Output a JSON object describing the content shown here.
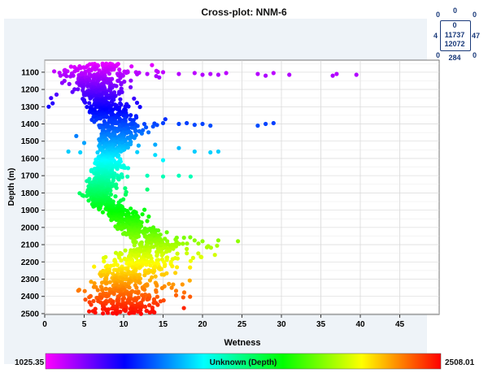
{
  "chart_data": {
    "type": "scatter",
    "title": "Cross-plot: NNM-6",
    "xlabel": "Wetness",
    "ylabel": "Depth (m)",
    "xlim": [
      0,
      50
    ],
    "ylim": [
      1030,
      2505
    ],
    "y_inverted": true,
    "xticks": [
      0,
      5,
      10,
      15,
      20,
      25,
      30,
      35,
      40,
      45
    ],
    "yticks": [
      1100,
      1200,
      1300,
      1400,
      1500,
      1600,
      1700,
      1800,
      1900,
      2000,
      2100,
      2200,
      2300,
      2400,
      2500
    ],
    "grid": true,
    "color_scale": {
      "label": "Unknown (Depth)",
      "min_label": "1025.35",
      "max_label": "2508.01",
      "min": 1025.35,
      "max": 2508.01,
      "colors": [
        "#ff00ff",
        "#0000ff",
        "#00ffff",
        "#00ff00",
        "#ffff00",
        "#ff0000"
      ]
    },
    "summary_grid": {
      "top_outer": "0",
      "top_inner": "0",
      "center_top": "11737",
      "center_bottom": "12072",
      "left": "4",
      "right": "47",
      "top_left": "0",
      "top_right": "0",
      "bottom_left": "0",
      "bottom_right": "0",
      "bottom": "284"
    },
    "trend": [
      {
        "depth": 1050,
        "center": 7.0,
        "spread": 2.2
      },
      {
        "depth": 1100,
        "center": 6.5,
        "spread": 2.6
      },
      {
        "depth": 1150,
        "center": 6.2,
        "spread": 2.0
      },
      {
        "depth": 1200,
        "center": 6.5,
        "spread": 1.6
      },
      {
        "depth": 1250,
        "center": 7.0,
        "spread": 1.3
      },
      {
        "depth": 1300,
        "center": 7.4,
        "spread": 1.2
      },
      {
        "depth": 1350,
        "center": 8.0,
        "spread": 1.5
      },
      {
        "depth": 1400,
        "center": 9.0,
        "spread": 2.0
      },
      {
        "depth": 1450,
        "center": 9.2,
        "spread": 1.6
      },
      {
        "depth": 1500,
        "center": 9.0,
        "spread": 1.3
      },
      {
        "depth": 1550,
        "center": 8.4,
        "spread": 1.1
      },
      {
        "depth": 1600,
        "center": 8.0,
        "spread": 1.0
      },
      {
        "depth": 1650,
        "center": 7.6,
        "spread": 1.0
      },
      {
        "depth": 1700,
        "center": 7.4,
        "spread": 1.0
      },
      {
        "depth": 1750,
        "center": 7.2,
        "spread": 1.1
      },
      {
        "depth": 1800,
        "center": 6.5,
        "spread": 1.1
      },
      {
        "depth": 1850,
        "center": 7.5,
        "spread": 1.2
      },
      {
        "depth": 1900,
        "center": 8.8,
        "spread": 1.2
      },
      {
        "depth": 1950,
        "center": 10.2,
        "spread": 1.3
      },
      {
        "depth": 2000,
        "center": 11.2,
        "spread": 1.4
      },
      {
        "depth": 2050,
        "center": 12.5,
        "spread": 1.6
      },
      {
        "depth": 2100,
        "center": 14.5,
        "spread": 2.6
      },
      {
        "depth": 2150,
        "center": 12.5,
        "spread": 2.4
      },
      {
        "depth": 2200,
        "center": 11.5,
        "spread": 2.6
      },
      {
        "depth": 2250,
        "center": 10.5,
        "spread": 2.4
      },
      {
        "depth": 2300,
        "center": 10.0,
        "spread": 2.2
      },
      {
        "depth": 2350,
        "center": 9.5,
        "spread": 2.4
      },
      {
        "depth": 2400,
        "center": 9.5,
        "spread": 2.8
      },
      {
        "depth": 2450,
        "center": 10.0,
        "spread": 2.8
      },
      {
        "depth": 2500,
        "center": 10.5,
        "spread": 2.6
      }
    ],
    "outliers": [
      {
        "x": 13,
        "y": 1110
      },
      {
        "x": 15,
        "y": 1100
      },
      {
        "x": 17,
        "y": 1110
      },
      {
        "x": 19,
        "y": 1105
      },
      {
        "x": 20,
        "y": 1115
      },
      {
        "x": 21,
        "y": 1110
      },
      {
        "x": 22,
        "y": 1115
      },
      {
        "x": 23,
        "y": 1105
      },
      {
        "x": 27,
        "y": 1110
      },
      {
        "x": 28,
        "y": 1120
      },
      {
        "x": 29,
        "y": 1105
      },
      {
        "x": 31,
        "y": 1115
      },
      {
        "x": 36.5,
        "y": 1120
      },
      {
        "x": 37,
        "y": 1110
      },
      {
        "x": 39.5,
        "y": 1115
      },
      {
        "x": 1,
        "y": 1280
      },
      {
        "x": 0.5,
        "y": 1300
      },
      {
        "x": 0.8,
        "y": 1250
      },
      {
        "x": 1.5,
        "y": 1230
      },
      {
        "x": 2.5,
        "y": 1150
      },
      {
        "x": 2,
        "y": 1120
      },
      {
        "x": 1.2,
        "y": 1095
      },
      {
        "x": 15,
        "y": 1395
      },
      {
        "x": 17,
        "y": 1400
      },
      {
        "x": 18,
        "y": 1395
      },
      {
        "x": 19,
        "y": 1405
      },
      {
        "x": 20,
        "y": 1400
      },
      {
        "x": 21,
        "y": 1410
      },
      {
        "x": 27,
        "y": 1410
      },
      {
        "x": 28,
        "y": 1400
      },
      {
        "x": 29,
        "y": 1395
      },
      {
        "x": 4,
        "y": 1470
      },
      {
        "x": 5,
        "y": 1510
      },
      {
        "x": 14,
        "y": 1520
      },
      {
        "x": 17,
        "y": 1540
      },
      {
        "x": 3,
        "y": 1560
      },
      {
        "x": 4.5,
        "y": 1565
      },
      {
        "x": 19,
        "y": 1560
      },
      {
        "x": 21,
        "y": 1565
      },
      {
        "x": 22,
        "y": 1560
      },
      {
        "x": 14,
        "y": 1580
      },
      {
        "x": 15,
        "y": 1610
      },
      {
        "x": 13,
        "y": 1700
      },
      {
        "x": 15,
        "y": 1705
      },
      {
        "x": 17,
        "y": 1700
      },
      {
        "x": 18.5,
        "y": 1705
      },
      {
        "x": 13,
        "y": 1780
      },
      {
        "x": 19,
        "y": 2075
      },
      {
        "x": 20,
        "y": 2080
      },
      {
        "x": 22,
        "y": 2075
      },
      {
        "x": 24.5,
        "y": 2080
      },
      {
        "x": 18,
        "y": 2125
      },
      {
        "x": 18.5,
        "y": 2195
      },
      {
        "x": 16,
        "y": 2200
      }
    ]
  }
}
